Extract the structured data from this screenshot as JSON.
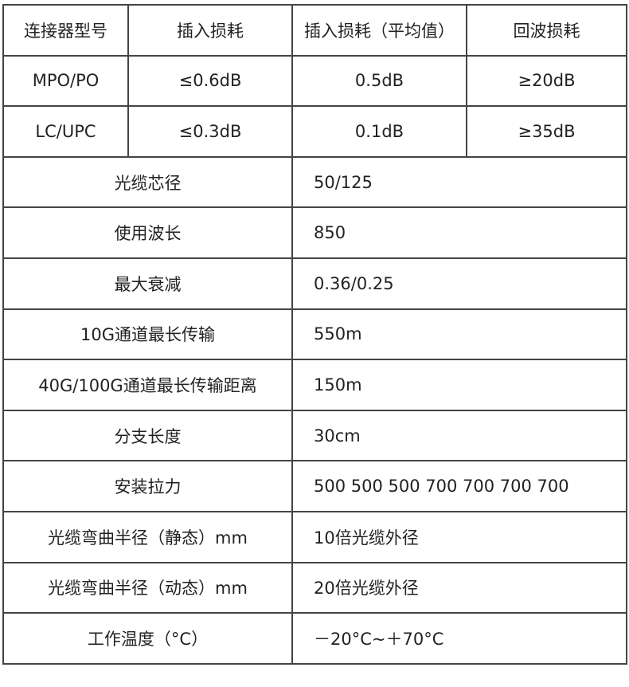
{
  "header": [
    "连接器型号",
    "插入损耗",
    "插入损耗（平均值）",
    "回波损耗"
  ],
  "connector_rows": [
    [
      "MPO/PO",
      "≤0.6dB",
      "0.5dB",
      "≥20dB"
    ],
    [
      "LC/UPC",
      "≤0.3dB",
      "0.1dB",
      "≥35dB"
    ]
  ],
  "spec_rows": [
    {
      "label": "光缆芯径",
      "value": "50/125"
    },
    {
      "label": "使用波长",
      "value": "850"
    },
    {
      "label": "最大衰减",
      "value": "0.36/0.25"
    },
    {
      "label": "10G通道最长传输",
      "value": "550m"
    },
    {
      "label": "40G/100G通道最长传输距离",
      "value": "150m"
    },
    {
      "label": "分支长度",
      "value": "30cm"
    },
    {
      "label": "安装拉力",
      "value": "500  500  500  700  700  700  700"
    },
    {
      "label": "光缆弯曲半径（静态）mm",
      "value": "10倍光缆外径"
    },
    {
      "label": "光缆弯曲半径（动态）mm",
      "value": "20倍光缆外径"
    },
    {
      "label": "工作温度（°C）",
      "value": "－20°C~＋70°C"
    }
  ]
}
